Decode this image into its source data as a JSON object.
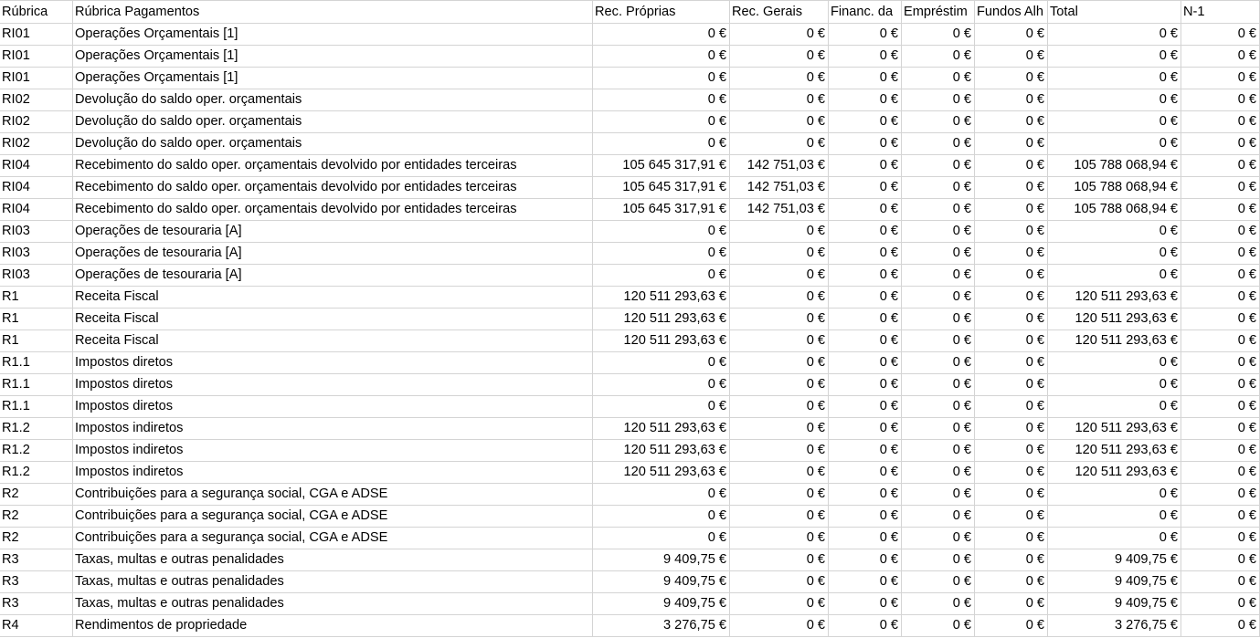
{
  "columns": [
    "Rúbrica",
    "Rúbrica Pagamentos",
    "Rec. Próprias",
    "Rec. Gerais",
    "Financ. da",
    "Empréstim",
    "Fundos Alh",
    "Total",
    "N-1"
  ],
  "rows": [
    [
      "RI01",
      "Operações Orçamentais [1]",
      "0 €",
      "0 €",
      "0 €",
      "0 €",
      "0 €",
      "0 €",
      "0 €"
    ],
    [
      "RI01",
      "Operações Orçamentais [1]",
      "0 €",
      "0 €",
      "0 €",
      "0 €",
      "0 €",
      "0 €",
      "0 €"
    ],
    [
      "RI01",
      "Operações Orçamentais [1]",
      "0 €",
      "0 €",
      "0 €",
      "0 €",
      "0 €",
      "0 €",
      "0 €"
    ],
    [
      "RI02",
      "Devolução do saldo oper. orçamentais",
      "0 €",
      "0 €",
      "0 €",
      "0 €",
      "0 €",
      "0 €",
      "0 €"
    ],
    [
      "RI02",
      "Devolução do saldo oper. orçamentais",
      "0 €",
      "0 €",
      "0 €",
      "0 €",
      "0 €",
      "0 €",
      "0 €"
    ],
    [
      "RI02",
      "Devolução do saldo oper. orçamentais",
      "0 €",
      "0 €",
      "0 €",
      "0 €",
      "0 €",
      "0 €",
      "0 €"
    ],
    [
      "RI04",
      "Recebimento do saldo oper. orçamentais devolvido por entidades terceiras",
      "105 645 317,91 €",
      "142 751,03 €",
      "0 €",
      "0 €",
      "0 €",
      "105 788 068,94 €",
      "0 €"
    ],
    [
      "RI04",
      "Recebimento do saldo oper. orçamentais devolvido por entidades terceiras",
      "105 645 317,91 €",
      "142 751,03 €",
      "0 €",
      "0 €",
      "0 €",
      "105 788 068,94 €",
      "0 €"
    ],
    [
      "RI04",
      "Recebimento do saldo oper. orçamentais devolvido por entidades terceiras",
      "105 645 317,91 €",
      "142 751,03 €",
      "0 €",
      "0 €",
      "0 €",
      "105 788 068,94 €",
      "0 €"
    ],
    [
      "RI03",
      "Operações de tesouraria [A]",
      "0 €",
      "0 €",
      "0 €",
      "0 €",
      "0 €",
      "0 €",
      "0 €"
    ],
    [
      "RI03",
      "Operações de tesouraria [A]",
      "0 €",
      "0 €",
      "0 €",
      "0 €",
      "0 €",
      "0 €",
      "0 €"
    ],
    [
      "RI03",
      "Operações de tesouraria [A]",
      "0 €",
      "0 €",
      "0 €",
      "0 €",
      "0 €",
      "0 €",
      "0 €"
    ],
    [
      "R1",
      "Receita Fiscal",
      "120 511 293,63 €",
      "0 €",
      "0 €",
      "0 €",
      "0 €",
      "120 511 293,63 €",
      "0 €"
    ],
    [
      "R1",
      "Receita Fiscal",
      "120 511 293,63 €",
      "0 €",
      "0 €",
      "0 €",
      "0 €",
      "120 511 293,63 €",
      "0 €"
    ],
    [
      "R1",
      "Receita Fiscal",
      "120 511 293,63 €",
      "0 €",
      "0 €",
      "0 €",
      "0 €",
      "120 511 293,63 €",
      "0 €"
    ],
    [
      "R1.1",
      "Impostos diretos",
      "0 €",
      "0 €",
      "0 €",
      "0 €",
      "0 €",
      "0 €",
      "0 €"
    ],
    [
      "R1.1",
      "Impostos diretos",
      "0 €",
      "0 €",
      "0 €",
      "0 €",
      "0 €",
      "0 €",
      "0 €"
    ],
    [
      "R1.1",
      "Impostos diretos",
      "0 €",
      "0 €",
      "0 €",
      "0 €",
      "0 €",
      "0 €",
      "0 €"
    ],
    [
      "R1.2",
      "Impostos indiretos",
      "120 511 293,63 €",
      "0 €",
      "0 €",
      "0 €",
      "0 €",
      "120 511 293,63 €",
      "0 €"
    ],
    [
      "R1.2",
      "Impostos indiretos",
      "120 511 293,63 €",
      "0 €",
      "0 €",
      "0 €",
      "0 €",
      "120 511 293,63 €",
      "0 €"
    ],
    [
      "R1.2",
      "Impostos indiretos",
      "120 511 293,63 €",
      "0 €",
      "0 €",
      "0 €",
      "0 €",
      "120 511 293,63 €",
      "0 €"
    ],
    [
      "R2",
      "Contribuições para a segurança social, CGA e ADSE",
      "0 €",
      "0 €",
      "0 €",
      "0 €",
      "0 €",
      "0 €",
      "0 €"
    ],
    [
      "R2",
      "Contribuições para a segurança social, CGA e ADSE",
      "0 €",
      "0 €",
      "0 €",
      "0 €",
      "0 €",
      "0 €",
      "0 €"
    ],
    [
      "R2",
      "Contribuições para a segurança social, CGA e ADSE",
      "0 €",
      "0 €",
      "0 €",
      "0 €",
      "0 €",
      "0 €",
      "0 €"
    ],
    [
      "R3",
      "Taxas, multas e outras penalidades",
      "9 409,75 €",
      "0 €",
      "0 €",
      "0 €",
      "0 €",
      "9 409,75 €",
      "0 €"
    ],
    [
      "R3",
      "Taxas, multas e outras penalidades",
      "9 409,75 €",
      "0 €",
      "0 €",
      "0 €",
      "0 €",
      "9 409,75 €",
      "0 €"
    ],
    [
      "R3",
      "Taxas, multas e outras penalidades",
      "9 409,75 €",
      "0 €",
      "0 €",
      "0 €",
      "0 €",
      "9 409,75 €",
      "0 €"
    ],
    [
      "R4",
      "Rendimentos de propriedade",
      "3 276,75 €",
      "0 €",
      "0 €",
      "0 €",
      "0 €",
      "3 276,75 €",
      "0 €"
    ]
  ]
}
